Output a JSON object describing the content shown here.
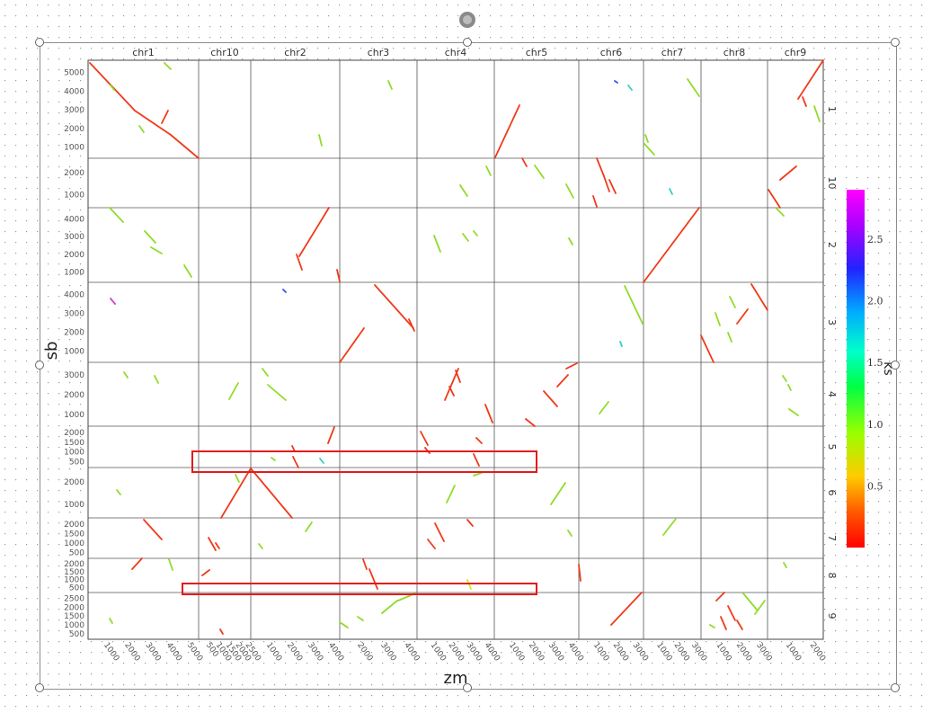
{
  "chart_data": {
    "type": "scatter",
    "xlabel": "zm",
    "ylabel": "sb",
    "x_chromosomes": [
      {
        "name": "chr1",
        "ticks": [
          "1000",
          "2000",
          "3000",
          "4000",
          "5000"
        ]
      },
      {
        "name": "chr10",
        "ticks": [
          "500",
          "1000",
          "1500",
          "2000",
          "2500"
        ]
      },
      {
        "name": "chr2",
        "ticks": [
          "1000",
          "2000",
          "3000",
          "4000"
        ]
      },
      {
        "name": "chr3",
        "ticks": [
          "2000",
          "3000",
          "4000"
        ]
      },
      {
        "name": "chr4",
        "ticks": [
          "1000",
          "2000",
          "3000",
          "4000"
        ]
      },
      {
        "name": "chr5",
        "ticks": [
          "1000",
          "2000",
          "3000",
          "4000"
        ]
      },
      {
        "name": "chr6",
        "ticks": [
          "1000",
          "2000",
          "3000"
        ]
      },
      {
        "name": "chr7",
        "ticks": [
          "1000",
          "2000",
          "3000"
        ]
      },
      {
        "name": "chr8",
        "ticks": [
          "1000",
          "2000",
          "3000"
        ]
      },
      {
        "name": "chr9",
        "ticks": [
          "1000",
          "2000"
        ]
      }
    ],
    "y_chromosomes": [
      {
        "name": "1",
        "ticks": [
          "1000",
          "2000",
          "3000",
          "4000",
          "5000"
        ]
      },
      {
        "name": "10",
        "ticks": [
          "1000",
          "2000"
        ]
      },
      {
        "name": "2",
        "ticks": [
          "1000",
          "2000",
          "3000",
          "4000"
        ]
      },
      {
        "name": "3",
        "ticks": [
          "1000",
          "2000",
          "3000",
          "4000"
        ]
      },
      {
        "name": "4",
        "ticks": [
          "1000",
          "2000",
          "3000"
        ]
      },
      {
        "name": "5",
        "ticks": [
          "500",
          "1000",
          "1500",
          "2000"
        ]
      },
      {
        "name": "6",
        "ticks": [
          "1000",
          "2000"
        ]
      },
      {
        "name": "7",
        "ticks": [
          "500",
          "1000",
          "1500",
          "2000"
        ]
      },
      {
        "name": "8",
        "ticks": [
          "500",
          "1000",
          "1500",
          "2000"
        ]
      },
      {
        "name": "9",
        "ticks": [
          "500",
          "1000",
          "1500",
          "2000",
          "2500"
        ]
      }
    ],
    "colorbar": {
      "label": "ks",
      "ticks": [
        "0.5",
        "1.0",
        "1.5",
        "2.0",
        "2.5"
      ],
      "range": [
        0,
        2.9
      ]
    },
    "grid": true
  }
}
